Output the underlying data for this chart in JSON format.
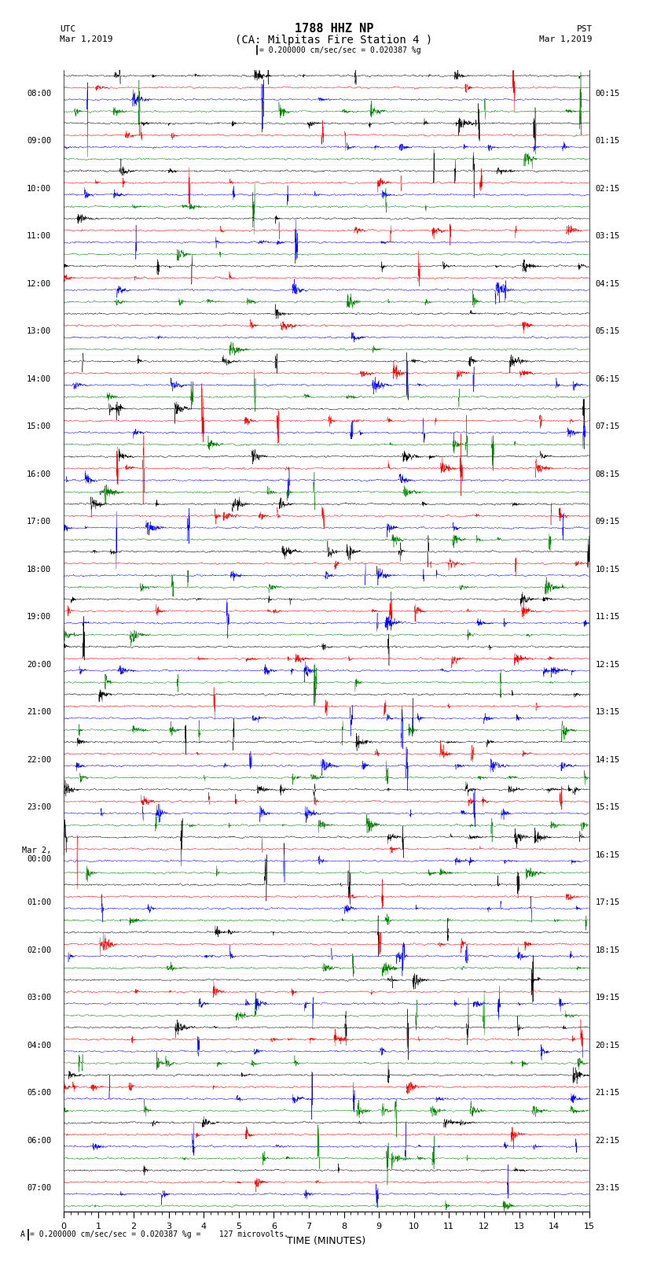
{
  "title_line1": "1788 HHZ NP",
  "title_line2": "(CA: Milpitas Fire Station 4 )",
  "scale_line": "| = 0.200000 cm/sec/sec = 0.020387 %g",
  "utc_label": "UTC",
  "pst_label": "PST",
  "date_left": "Mar 1,2019",
  "date_right": "Mar 1,2019",
  "xlabel": "TIME (MINUTES)",
  "left_times": [
    "08:00",
    "09:00",
    "10:00",
    "11:00",
    "12:00",
    "13:00",
    "14:00",
    "15:00",
    "16:00",
    "17:00",
    "18:00",
    "19:00",
    "20:00",
    "21:00",
    "22:00",
    "23:00",
    "Mar 2,\n00:00",
    "01:00",
    "02:00",
    "03:00",
    "04:00",
    "05:00",
    "06:00",
    "07:00"
  ],
  "right_times": [
    "00:15",
    "01:15",
    "02:15",
    "03:15",
    "04:15",
    "05:15",
    "06:15",
    "07:15",
    "08:15",
    "09:15",
    "10:15",
    "11:15",
    "12:15",
    "13:15",
    "14:15",
    "15:15",
    "16:15",
    "17:15",
    "18:15",
    "19:15",
    "20:15",
    "21:15",
    "22:15",
    "23:15"
  ],
  "colors": [
    "black",
    "red",
    "blue",
    "green"
  ],
  "n_rows": 24,
  "n_traces_per_row": 4,
  "minutes": 15,
  "spm": 200,
  "bg_color": "#ffffff",
  "font_size_title": 10,
  "font_size_labels": 8,
  "font_size_ticks": 7,
  "bottom_note": "A | = 0.200000 cm/sec/sec = 0.020387 %g =    127 microvolts."
}
